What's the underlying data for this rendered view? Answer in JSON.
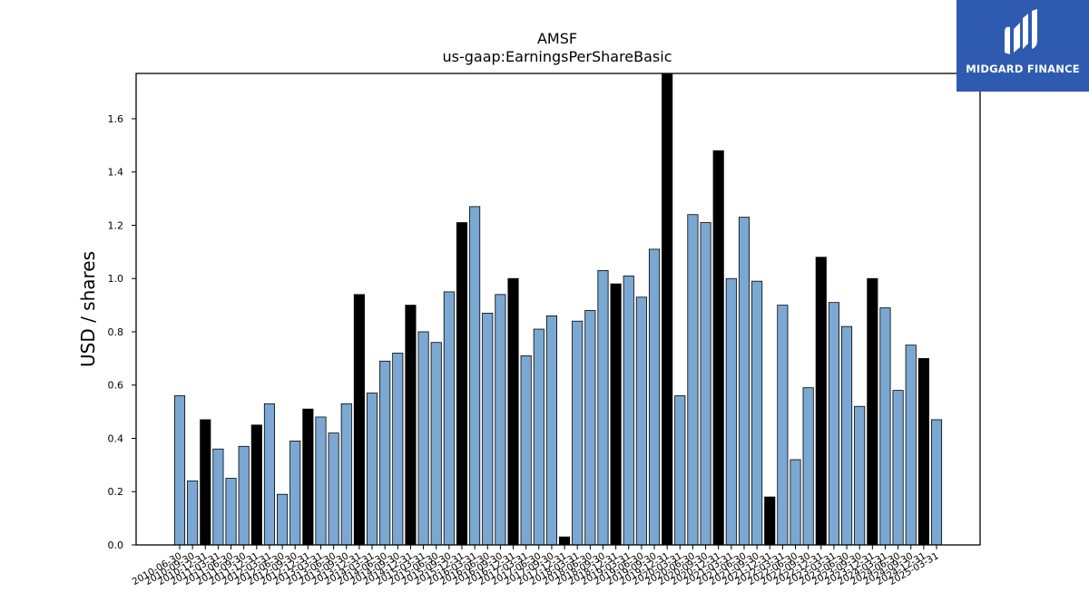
{
  "chart_data": {
    "type": "bar",
    "title": "AMSF",
    "subtitle": "us-gaap:EarningsPerShareBasic",
    "xlabel": "",
    "ylabel": "USD / shares",
    "ylim": [
      0,
      1.77
    ],
    "yticks": [
      "0.0",
      "0.2",
      "0.4",
      "0.6",
      "0.8",
      "1.0",
      "1.2",
      "1.4",
      "1.6"
    ],
    "grid": false,
    "colors": {
      "quarter": "#7aa8d2",
      "annual": "#000000",
      "edge": "#000000"
    },
    "categories": [
      "2010-06-30",
      "2010-09-30",
      "2010-12-31",
      "2011-03-31",
      "2011-06-30",
      "2011-09-30",
      "2011-12-31",
      "2012-03-31",
      "2012-06-30",
      "2012-09-30",
      "2012-12-31",
      "2013-03-31",
      "2013-06-30",
      "2013-09-30",
      "2013-12-31",
      "2014-03-31",
      "2014-06-30",
      "2014-09-30",
      "2014-12-31",
      "2015-03-31",
      "2015-06-30",
      "2015-09-30",
      "2015-12-31",
      "2016-03-31",
      "2016-06-30",
      "2016-09-30",
      "2016-12-31",
      "2017-03-31",
      "2017-06-30",
      "2017-09-30",
      "2017-12-31",
      "2018-03-31",
      "2018-06-30",
      "2018-09-30",
      "2018-12-31",
      "2019-03-31",
      "2019-06-30",
      "2019-09-30",
      "2019-12-31",
      "2020-03-31",
      "2020-06-30",
      "2020-09-30",
      "2020-12-31",
      "2021-03-31",
      "2021-06-30",
      "2021-09-30",
      "2021-12-31",
      "2022-03-31",
      "2022-06-30",
      "2022-09-30",
      "2022-12-31",
      "2023-03-31",
      "2023-06-30",
      "2023-09-30",
      "2023-12-31",
      "2024-03-31",
      "2024-06-30",
      "2024-09-30",
      "2024-12-31",
      "2025-03-31"
    ],
    "values": [
      0.56,
      0.24,
      0.47,
      0.36,
      0.25,
      0.37,
      0.45,
      0.53,
      0.19,
      0.39,
      0.51,
      0.48,
      0.42,
      0.53,
      0.94,
      0.57,
      0.69,
      0.72,
      0.9,
      0.8,
      0.76,
      0.95,
      1.21,
      1.27,
      0.87,
      0.94,
      1.0,
      0.71,
      0.81,
      0.86,
      0.03,
      0.84,
      0.88,
      1.03,
      0.98,
      1.01,
      0.93,
      1.11,
      1.77,
      0.56,
      1.24,
      1.21,
      1.48,
      1.0,
      1.23,
      0.99,
      0.18,
      0.9,
      0.32,
      0.59,
      1.08,
      0.91,
      0.82,
      0.52,
      1.0,
      0.89,
      0.58,
      0.75,
      0.7,
      0.47
    ],
    "annual": [
      false,
      false,
      true,
      false,
      false,
      false,
      true,
      false,
      false,
      false,
      true,
      false,
      false,
      false,
      true,
      false,
      false,
      false,
      true,
      false,
      false,
      false,
      true,
      false,
      false,
      false,
      true,
      false,
      false,
      false,
      true,
      false,
      false,
      false,
      true,
      false,
      false,
      false,
      true,
      false,
      false,
      false,
      true,
      false,
      false,
      false,
      true,
      false,
      false,
      false,
      true,
      false,
      false,
      false,
      true,
      false,
      false,
      false,
      true,
      false
    ]
  },
  "logo": {
    "name": "MIDGARD FINANCE",
    "background": "#2e5bb0"
  }
}
